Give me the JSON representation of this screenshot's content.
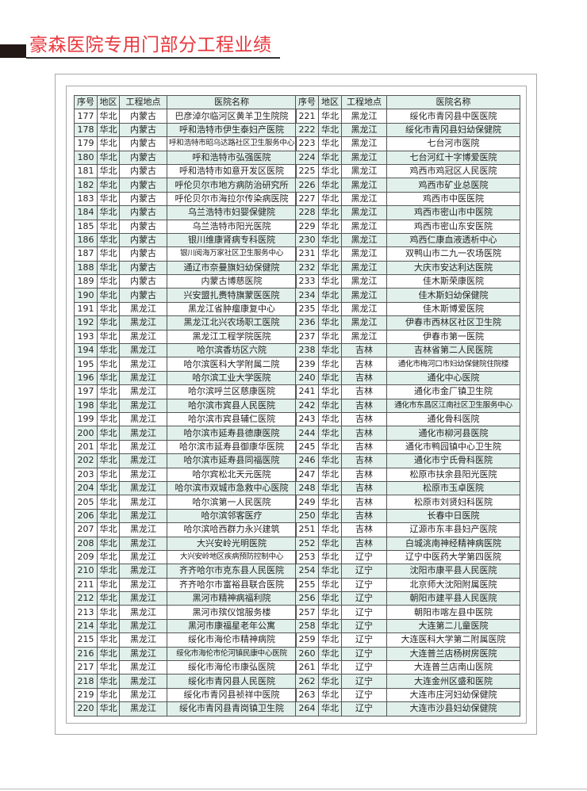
{
  "title": "豪森医院专用门部分工程业绩",
  "headers": [
    "序号",
    "地区",
    "工程地点",
    "医院名称"
  ],
  "left_rows": [
    [
      "177",
      "华北",
      "内蒙古",
      "巴彦淖尔临河区黄羊卫生院院"
    ],
    [
      "178",
      "华北",
      "内蒙古",
      "呼和浩特市伊生泰妇产医院"
    ],
    [
      "179",
      "华北",
      "内蒙古",
      "呼和浩特市昭乌达路社区卫生服务中心"
    ],
    [
      "180",
      "华北",
      "内蒙古",
      "呼和浩特市弘强医院"
    ],
    [
      "181",
      "华北",
      "内蒙古",
      "呼和浩特市如意开发区医院"
    ],
    [
      "182",
      "华北",
      "内蒙古",
      "呼伦贝尔市地方病防治研究所"
    ],
    [
      "183",
      "华北",
      "内蒙古",
      "呼伦贝尔市海拉尔传染病医院"
    ],
    [
      "184",
      "华北",
      "内蒙古",
      "乌兰浩特市妇婴保健院"
    ],
    [
      "185",
      "华北",
      "内蒙古",
      "乌兰浩特市阳光医院"
    ],
    [
      "186",
      "华北",
      "内蒙古",
      "银川维康肾病专科医院"
    ],
    [
      "187",
      "华北",
      "内蒙古",
      "银川阅海万家社区卫生服务中心"
    ],
    [
      "188",
      "华北",
      "内蒙古",
      "通辽市奈曼旗妇幼保健院"
    ],
    [
      "189",
      "华北",
      "内蒙古",
      "内蒙古博慈医院"
    ],
    [
      "190",
      "华北",
      "内蒙古",
      "兴安盟扎赉特旗蒙医医院"
    ],
    [
      "191",
      "华北",
      "黑龙江",
      "黑龙江省肿瘤康复中心"
    ],
    [
      "192",
      "华北",
      "黑龙江",
      "黑龙江北兴农场职工医院"
    ],
    [
      "193",
      "华北",
      "黑龙江",
      "黑龙江工程学院医院"
    ],
    [
      "194",
      "华北",
      "黑龙江",
      "哈尔滨香坊区六院"
    ],
    [
      "195",
      "华北",
      "黑龙江",
      "哈尔滨医科大学附属二院"
    ],
    [
      "196",
      "华北",
      "黑龙江",
      "哈尔滨工业大学医院"
    ],
    [
      "197",
      "华北",
      "黑龙江",
      "哈尔滨呼兰区慈康医院"
    ],
    [
      "198",
      "华北",
      "黑龙江",
      "哈尔滨市宾县人民医院"
    ],
    [
      "199",
      "华北",
      "黑龙江",
      "哈尔滨市宾县辅仁医院"
    ],
    [
      "200",
      "华北",
      "黑龙江",
      "哈尔滨市延寿县德康医院"
    ],
    [
      "201",
      "华北",
      "黑龙江",
      "哈尔滨市延寿县御康华医院"
    ],
    [
      "202",
      "华北",
      "黑龙江",
      "哈尔滨市延寿县同福医院"
    ],
    [
      "203",
      "华北",
      "黑龙江",
      "哈尔宾松北天元医院"
    ],
    [
      "204",
      "华北",
      "黑龙江",
      "哈尔滨市双城市急救中心医院"
    ],
    [
      "205",
      "华北",
      "黑龙江",
      "哈尔滨第一人民医院"
    ],
    [
      "206",
      "华北",
      "黑龙江",
      "哈尔滨邻客医疗"
    ],
    [
      "207",
      "华北",
      "黑龙江",
      "哈尔滨哈西群力永兴建筑"
    ],
    [
      "208",
      "华北",
      "黑龙江",
      "大兴安岭光明医院"
    ],
    [
      "209",
      "华北",
      "黑龙江",
      "大兴安岭地区疾病预防控制中心"
    ],
    [
      "210",
      "华北",
      "黑龙江",
      "齐齐哈尔市克东县人民医院"
    ],
    [
      "211",
      "华北",
      "黑龙江",
      "齐齐哈尔市富裕县联合医院"
    ],
    [
      "212",
      "华北",
      "黑龙江",
      "黑河市精神病福利院"
    ],
    [
      "213",
      "华北",
      "黑龙江",
      "黑河市殡仪馆服务楼"
    ],
    [
      "214",
      "华北",
      "黑龙江",
      "黑河市康福星老年公寓"
    ],
    [
      "215",
      "华北",
      "黑龙江",
      "绥化市海伦市精神病院"
    ],
    [
      "216",
      "华北",
      "黑龙江",
      "绥化市海伦市伦河镇民康中心医院"
    ],
    [
      "217",
      "华北",
      "黑龙江",
      "绥化市海伦市康弘医院"
    ],
    [
      "218",
      "华北",
      "黑龙江",
      "绥化市青冈县人民医院"
    ],
    [
      "219",
      "华北",
      "黑龙江",
      "绥化市青冈县祯祥中医院"
    ],
    [
      "220",
      "华北",
      "黑龙江",
      "绥化市青冈县青岗镇卫生院"
    ]
  ],
  "right_rows": [
    [
      "221",
      "华北",
      "黑龙江",
      "绥化市青冈县中医医院"
    ],
    [
      "222",
      "华北",
      "黑龙江",
      "绥化市青冈县妇幼保健院"
    ],
    [
      "223",
      "华北",
      "黑龙江",
      "七台河市医院"
    ],
    [
      "224",
      "华北",
      "黑龙江",
      "七台河红十字博爱医院"
    ],
    [
      "225",
      "华北",
      "黑龙江",
      "鸡西市鸡冠区人民医院"
    ],
    [
      "226",
      "华北",
      "黑龙江",
      "鸡西市矿业总医院"
    ],
    [
      "227",
      "华北",
      "黑龙江",
      "鸡西市中医医院"
    ],
    [
      "228",
      "华北",
      "黑龙江",
      "鸡西市密山市中医院"
    ],
    [
      "229",
      "华北",
      "黑龙江",
      "鸡西市密山东安医院"
    ],
    [
      "230",
      "华北",
      "黑龙江",
      "鸡西仁康血液透析中心"
    ],
    [
      "231",
      "华北",
      "黑龙江",
      "双鸭山市二九一农场医院"
    ],
    [
      "232",
      "华北",
      "黑龙江",
      "大庆市安达利达医院"
    ],
    [
      "233",
      "华北",
      "黑龙江",
      "佳木斯荣康医院"
    ],
    [
      "234",
      "华北",
      "黑龙江",
      "佳木斯妇幼保健院"
    ],
    [
      "235",
      "华北",
      "黑龙江",
      "佳木斯博爱医院"
    ],
    [
      "236",
      "华北",
      "黑龙江",
      "伊春市西林区社区卫生院"
    ],
    [
      "237",
      "华北",
      "黑龙江",
      "伊春市第一医院"
    ],
    [
      "238",
      "华北",
      "吉林",
      "吉林省第二人民医院"
    ],
    [
      "239",
      "华北",
      "吉林",
      "通化市梅河口市妇幼保健院住院楼"
    ],
    [
      "240",
      "华北",
      "吉林",
      "通化中心医院"
    ],
    [
      "241",
      "华北",
      "吉林",
      "通化市金厂镇卫生院"
    ],
    [
      "242",
      "华北",
      "吉林",
      "通化市东昌区江南社区卫生服务中心"
    ],
    [
      "243",
      "华北",
      "吉林",
      "通化骨科医院"
    ],
    [
      "244",
      "华北",
      "吉林",
      "通化市柳河县医院"
    ],
    [
      "245",
      "华北",
      "吉林",
      "通化市鸭园镇中心卫生院"
    ],
    [
      "246",
      "华北",
      "吉林",
      "通化市宁氏骨科医院"
    ],
    [
      "247",
      "华北",
      "吉林",
      "松原市扶余县阳光医院"
    ],
    [
      "248",
      "华北",
      "吉林",
      "松原市玉卓医院"
    ],
    [
      "249",
      "华北",
      "吉林",
      "松原市刘贤妇科医院"
    ],
    [
      "250",
      "华北",
      "吉林",
      "长春中日医院"
    ],
    [
      "251",
      "华北",
      "吉林",
      "辽源市东丰县妇产医院"
    ],
    [
      "252",
      "华北",
      "吉林",
      "白城洮南神经精神病医院"
    ],
    [
      "253",
      "华北",
      "辽宁",
      "辽宁中医药大学第四医院"
    ],
    [
      "254",
      "华北",
      "辽宁",
      "沈阳市康平县人民医院"
    ],
    [
      "255",
      "华北",
      "辽宁",
      "北京师大沈阳附属医院"
    ],
    [
      "256",
      "华北",
      "辽宁",
      "朝阳市建平县人民医院"
    ],
    [
      "257",
      "华北",
      "辽宁",
      "朝阳市喀左县中医院"
    ],
    [
      "258",
      "华北",
      "辽宁",
      "大连第二儿童医院"
    ],
    [
      "259",
      "华北",
      "辽宁",
      "大连医科大学第二附属医院"
    ],
    [
      "260",
      "华北",
      "辽宁",
      "大连普兰店杨树房医院"
    ],
    [
      "261",
      "华北",
      "辽宁",
      "大连普兰店南山医院"
    ],
    [
      "262",
      "华北",
      "辽宁",
      "大连金州区盛和医院"
    ],
    [
      "263",
      "华北",
      "辽宁",
      "大连市庄河妇幼保健院"
    ],
    [
      "264",
      "华北",
      "辽宁",
      "大连市沙县妇幼保健院"
    ]
  ]
}
